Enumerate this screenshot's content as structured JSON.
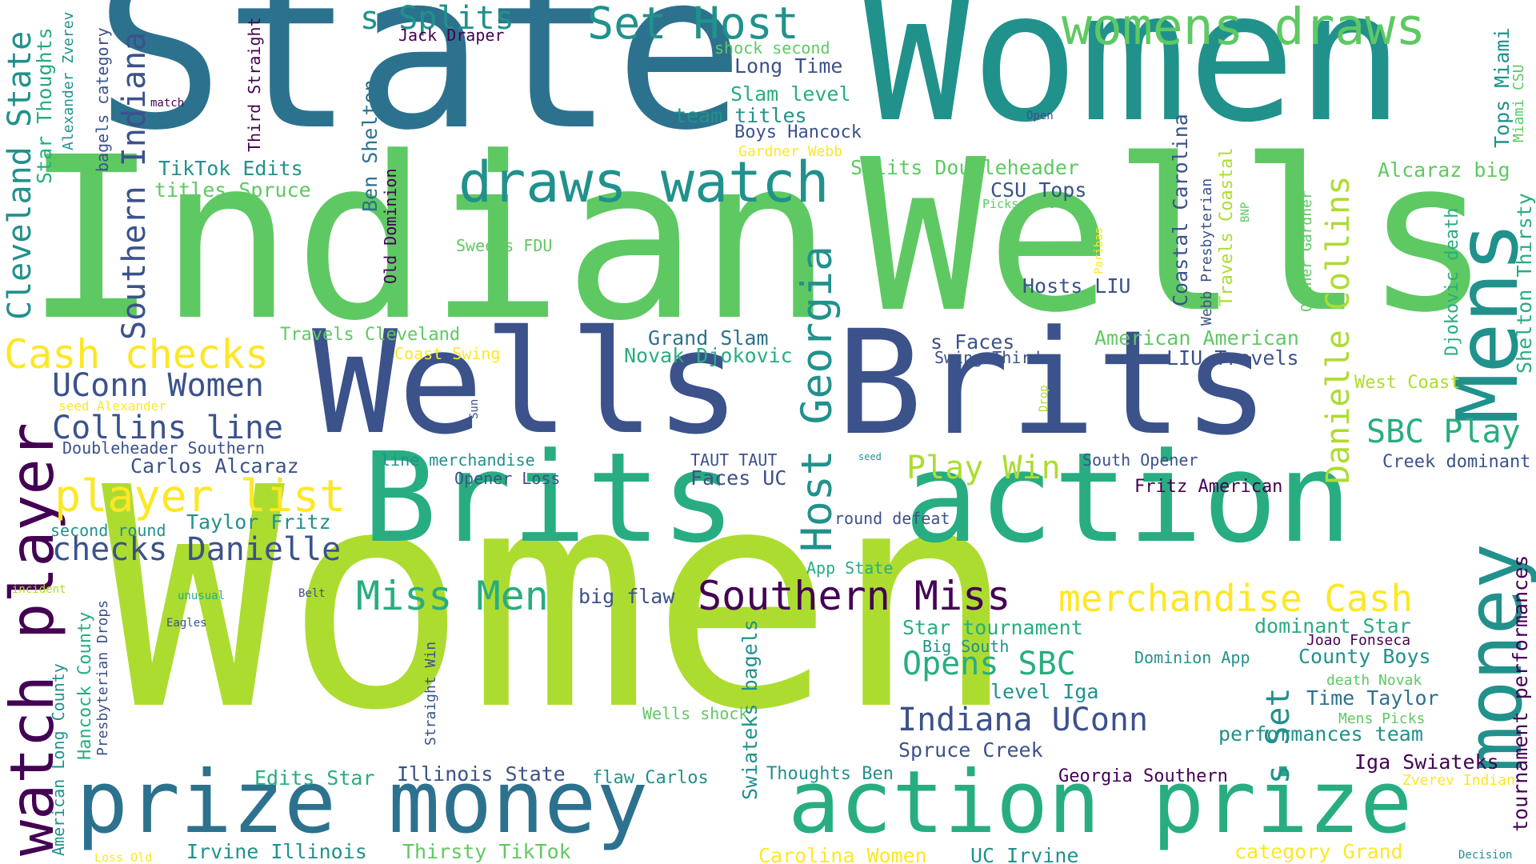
{
  "word_cloud": {
    "palette": {
      "dark_purple": "#440154",
      "indigo": "#3b528b",
      "teal": "#21918c",
      "blue_teal": "#2c728e",
      "green": "#27ad81",
      "light_green": "#5ec962",
      "lime": "#addc30",
      "yellow": "#fde725"
    },
    "words": [
      {
        "text": "Women",
        "color": "#addc30"
      },
      {
        "text": "State",
        "color": "#2c728e"
      },
      {
        "text": "Women",
        "color": "#21918c"
      },
      {
        "text": "Indian",
        "color": "#5ec962"
      },
      {
        "text": "Wells",
        "color": "#5ec962"
      },
      {
        "text": "Wells",
        "color": "#3b528b"
      },
      {
        "text": "Brits",
        "color": "#3b528b"
      },
      {
        "text": "Brits",
        "color": "#27ad81"
      },
      {
        "text": "action",
        "color": "#27ad81"
      },
      {
        "text": "prize money",
        "color": "#2c728e"
      },
      {
        "text": "action prize",
        "color": "#27ad81"
      },
      {
        "text": "draws watch",
        "color": "#21918c"
      },
      {
        "text": "womens draws",
        "color": "#5ec962"
      },
      {
        "text": "Mens",
        "color": "#21918c"
      },
      {
        "text": "money",
        "color": "#21918c"
      },
      {
        "text": "watch player",
        "color": "#440154"
      },
      {
        "text": "Cash checks",
        "color": "#fde725"
      },
      {
        "text": "player list",
        "color": "#fde725"
      },
      {
        "text": "Southern Miss",
        "color": "#440154"
      },
      {
        "text": "merchandise Cash",
        "color": "#fde725"
      },
      {
        "text": "Miss Men",
        "color": "#27ad81"
      },
      {
        "text": "Set Host",
        "color": "#21918c"
      },
      {
        "text": "Host Georgia",
        "color": "#21918c"
      },
      {
        "text": "s Splits",
        "color": "#21918c"
      },
      {
        "text": "UConn Women",
        "color": "#3b528b"
      },
      {
        "text": "Collins line",
        "color": "#3b528b"
      },
      {
        "text": "checks Danielle",
        "color": "#3b528b"
      },
      {
        "text": "Danielle Collins",
        "color": "#addc30"
      },
      {
        "text": "Southern Indiana",
        "color": "#3b528b"
      },
      {
        "text": "Cleveland State",
        "color": "#21918c"
      },
      {
        "text": "Indiana UConn",
        "color": "#3b528b"
      },
      {
        "text": "Opens SBC",
        "color": "#27ad81"
      },
      {
        "text": "SBC Play",
        "color": "#27ad81"
      },
      {
        "text": "Play Win",
        "color": "#addc30"
      },
      {
        "text": "s Set",
        "color": "#21918c"
      },
      {
        "text": "Long Time",
        "color": "#3b528b"
      },
      {
        "text": "Slam level",
        "color": "#27ad81"
      },
      {
        "text": "team titles",
        "color": "#21918c"
      },
      {
        "text": "Boys Hancock",
        "color": "#3b528b"
      },
      {
        "text": "Gardner Webb",
        "color": "#fde725"
      },
      {
        "text": "Splits Doubleheader",
        "color": "#5ec962"
      },
      {
        "text": "CSU Tops",
        "color": "#3b528b"
      },
      {
        "text": "Picks West",
        "color": "#5ec962"
      },
      {
        "text": "Hosts LIU",
        "color": "#3b528b"
      },
      {
        "text": "Coastal Carolina",
        "color": "#3b528b"
      },
      {
        "text": "Webb Presbyterian",
        "color": "#3b528b"
      },
      {
        "text": "Travels Coastal",
        "color": "#addc30"
      },
      {
        "text": "BNP",
        "color": "#5ec962"
      },
      {
        "text": "Paribas",
        "color": "#fde725"
      },
      {
        "text": "Opener Gardner",
        "color": "#5ec962"
      },
      {
        "text": "Alcaraz big",
        "color": "#5ec962"
      },
      {
        "text": "Djokovic death",
        "color": "#27ad81"
      },
      {
        "text": "Tops Miami",
        "color": "#21918c"
      },
      {
        "text": "Miami CSU",
        "color": "#5ec962"
      },
      {
        "text": "Shelton Thirsty",
        "color": "#27ad81"
      },
      {
        "text": "West Coast",
        "color": "#addc30"
      },
      {
        "text": "Creek dominant",
        "color": "#3b528b"
      },
      {
        "text": "Jack Draper",
        "color": "#440154"
      },
      {
        "text": "shock second",
        "color": "#5ec962"
      },
      {
        "text": "Open",
        "color": "#3b528b"
      },
      {
        "text": "TikTok Edits",
        "color": "#21918c"
      },
      {
        "text": "titles Spruce",
        "color": "#5ec962"
      },
      {
        "text": "Third Straight",
        "color": "#440154"
      },
      {
        "text": "Ben Shelton",
        "color": "#2c728e"
      },
      {
        "text": "Old Dominion",
        "color": "#440154"
      },
      {
        "text": "Star Thoughts",
        "color": "#27ad81"
      },
      {
        "text": "Alexander Zverev",
        "color": "#21918c"
      },
      {
        "text": "bagels category",
        "color": "#3b528b"
      },
      {
        "text": "match",
        "color": "#440154"
      },
      {
        "text": "Sweeps FDU",
        "color": "#5ec962"
      },
      {
        "text": "Travels Cleveland",
        "color": "#5ec962"
      },
      {
        "text": "Coast Swing",
        "color": "#fde725"
      },
      {
        "text": "Grand Slam",
        "color": "#2c728e"
      },
      {
        "text": "Novak Djokovic",
        "color": "#27ad81"
      },
      {
        "text": "s Faces",
        "color": "#3b528b"
      },
      {
        "text": "Swing Third",
        "color": "#3b528b"
      },
      {
        "text": "American American",
        "color": "#5ec962"
      },
      {
        "text": "LIU Travels",
        "color": "#3b528b"
      },
      {
        "text": "seed Alexander",
        "color": "#fde725"
      },
      {
        "text": "Sun",
        "color": "#3b528b"
      },
      {
        "text": "Drop",
        "color": "#addc30"
      },
      {
        "text": "seed",
        "color": "#21918c"
      },
      {
        "text": "Doubleheader Southern",
        "color": "#3b528b"
      },
      {
        "text": "Carlos Alcaraz",
        "color": "#3b528b"
      },
      {
        "text": "line merchandise",
        "color": "#21918c"
      },
      {
        "text": "Opener Loss",
        "color": "#3b528b"
      },
      {
        "text": "TAUT TAUT",
        "color": "#3b528b"
      },
      {
        "text": "Faces UC",
        "color": "#3b528b"
      },
      {
        "text": "South Opener",
        "color": "#3b528b"
      },
      {
        "text": "Fritz American",
        "color": "#440154"
      },
      {
        "text": "Taylor Fritz",
        "color": "#21918c"
      },
      {
        "text": "second round",
        "color": "#21918c"
      },
      {
        "text": "round defeat",
        "color": "#3b528b"
      },
      {
        "text": "App State",
        "color": "#27ad81"
      },
      {
        "text": "incident",
        "color": "#addc30"
      },
      {
        "text": "unusual",
        "color": "#27ad81"
      },
      {
        "text": "Belt",
        "color": "#3b528b"
      },
      {
        "text": "big flaw",
        "color": "#3b528b"
      },
      {
        "text": "Eagles",
        "color": "#3b528b"
      },
      {
        "text": "Straight Win",
        "color": "#3b528b"
      },
      {
        "text": "American Long County",
        "color": "#21918c"
      },
      {
        "text": "Hancock County",
        "color": "#27ad81"
      },
      {
        "text": "Presbyterian Drops",
        "color": "#3b528b"
      },
      {
        "text": "Star tournament",
        "color": "#27ad81"
      },
      {
        "text": "Big South",
        "color": "#21918c"
      },
      {
        "text": "dominant Star",
        "color": "#27ad81"
      },
      {
        "text": "Joao Fonseca",
        "color": "#440154"
      },
      {
        "text": "Dominion App",
        "color": "#21918c"
      },
      {
        "text": "County Boys",
        "color": "#21918c"
      },
      {
        "text": "death Novak",
        "color": "#5ec962"
      },
      {
        "text": "tournament performances",
        "color": "#440154"
      },
      {
        "text": "Wells shock",
        "color": "#5ec962"
      },
      {
        "text": "Swiateks bagels",
        "color": "#21918c"
      },
      {
        "text": "level Iga",
        "color": "#21918c"
      },
      {
        "text": "Time Taylor",
        "color": "#2c728e"
      },
      {
        "text": "Mens Picks",
        "color": "#5ec962"
      },
      {
        "text": "performances team",
        "color": "#21918c"
      },
      {
        "text": "Spruce Creek",
        "color": "#3b528b"
      },
      {
        "text": "Iga Swiateks",
        "color": "#440154"
      },
      {
        "text": "Zverev Indian",
        "color": "#fde725"
      },
      {
        "text": "Edits Star",
        "color": "#27ad81"
      },
      {
        "text": "Illinois State",
        "color": "#3b528b"
      },
      {
        "text": "flaw Carlos",
        "color": "#21918c"
      },
      {
        "text": "Thoughts Ben",
        "color": "#21918c"
      },
      {
        "text": "Georgia Southern",
        "color": "#440154"
      },
      {
        "text": "Irvine Illinois",
        "color": "#21918c"
      },
      {
        "text": "Thirsty TikTok",
        "color": "#5ec962"
      },
      {
        "text": "Carolina Women",
        "color": "#fde725"
      },
      {
        "text": "UC Irvine",
        "color": "#21918c"
      },
      {
        "text": "category Grand",
        "color": "#fde725"
      },
      {
        "text": "Loss Old",
        "color": "#fde725"
      },
      {
        "text": "Decision",
        "color": "#21918c"
      }
    ]
  }
}
